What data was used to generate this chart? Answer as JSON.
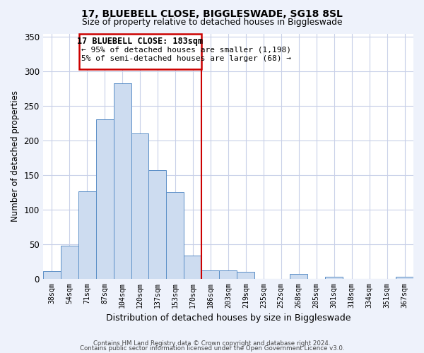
{
  "title": "17, BLUEBELL CLOSE, BIGGLESWADE, SG18 8SL",
  "subtitle": "Size of property relative to detached houses in Biggleswade",
  "xlabel": "Distribution of detached houses by size in Biggleswade",
  "ylabel": "Number of detached properties",
  "bin_labels": [
    "38sqm",
    "54sqm",
    "71sqm",
    "87sqm",
    "104sqm",
    "120sqm",
    "137sqm",
    "153sqm",
    "170sqm",
    "186sqm",
    "203sqm",
    "219sqm",
    "235sqm",
    "252sqm",
    "268sqm",
    "285sqm",
    "301sqm",
    "318sqm",
    "334sqm",
    "351sqm",
    "367sqm"
  ],
  "bar_heights": [
    12,
    48,
    127,
    231,
    283,
    211,
    158,
    126,
    34,
    13,
    13,
    11,
    0,
    0,
    7,
    0,
    3,
    0,
    0,
    0,
    3
  ],
  "bar_color": "#cddcf0",
  "bar_edge_color": "#5b8fc7",
  "vline_label": "17 BLUEBELL CLOSE: 183sqm",
  "annotation_line1": "← 95% of detached houses are smaller (1,198)",
  "annotation_line2": "5% of semi-detached houses are larger (68) →",
  "vline_color": "#cc0000",
  "ylim": [
    0,
    355
  ],
  "yticks": [
    0,
    50,
    100,
    150,
    200,
    250,
    300,
    350
  ],
  "footer1": "Contains HM Land Registry data © Crown copyright and database right 2024.",
  "footer2": "Contains public sector information licensed under the Open Government Licence v3.0.",
  "bg_color": "#eef2fb",
  "plot_bg_color": "#ffffff",
  "grid_color": "#c8d0e8"
}
